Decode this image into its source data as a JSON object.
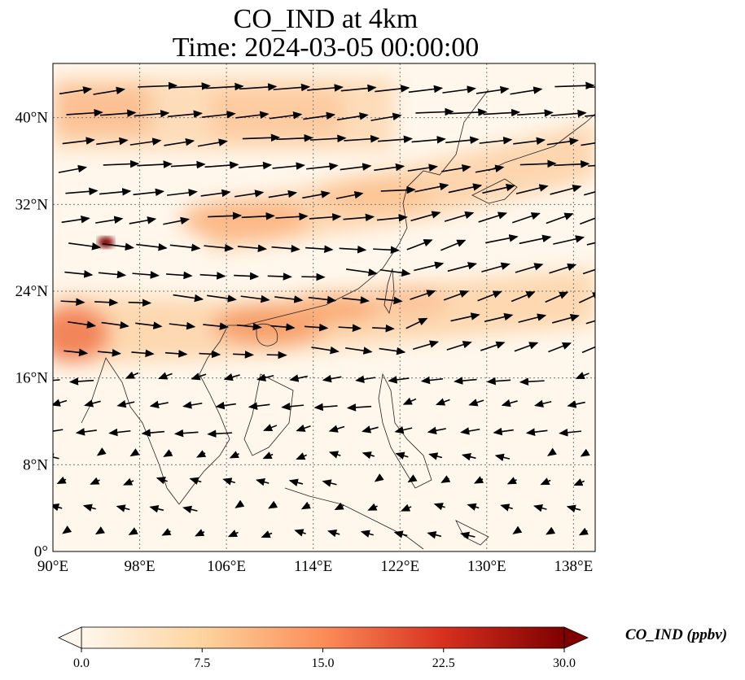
{
  "title": {
    "line1": "CO_IND at 4km",
    "line2": "Time: 2024-03-05 00:00:00"
  },
  "map": {
    "lon_range": [
      90,
      140
    ],
    "lat_range": [
      0,
      45
    ],
    "lon_ticks": [
      "90°E",
      "98°E",
      "106°E",
      "114°E",
      "122°E",
      "130°E",
      "138°E"
    ],
    "lat_ticks": [
      "0°",
      "8°N",
      "16°N",
      "24°N",
      "32°N",
      "40°N"
    ],
    "gridlines": true,
    "colormap": "OrRd",
    "hotspots": [
      {
        "lon": 94.5,
        "lat": 28.5,
        "value": 30
      },
      {
        "lon": 91,
        "lat": 19,
        "value": 18
      },
      {
        "lon": 111,
        "lat": 20,
        "value": 15
      },
      {
        "lon": 112,
        "lat": 31,
        "value": 13
      }
    ]
  },
  "colorbar": {
    "label": "CO_IND (ppbv)",
    "ticks": [
      "0.0",
      "7.5",
      "15.0",
      "22.5",
      "30.0"
    ],
    "min": 0,
    "max": 30,
    "extend": "both"
  },
  "colors": {
    "low": "#fff7ec",
    "mid": "#fdbb84",
    "high": "#d7301f",
    "max": "#7f0000"
  }
}
